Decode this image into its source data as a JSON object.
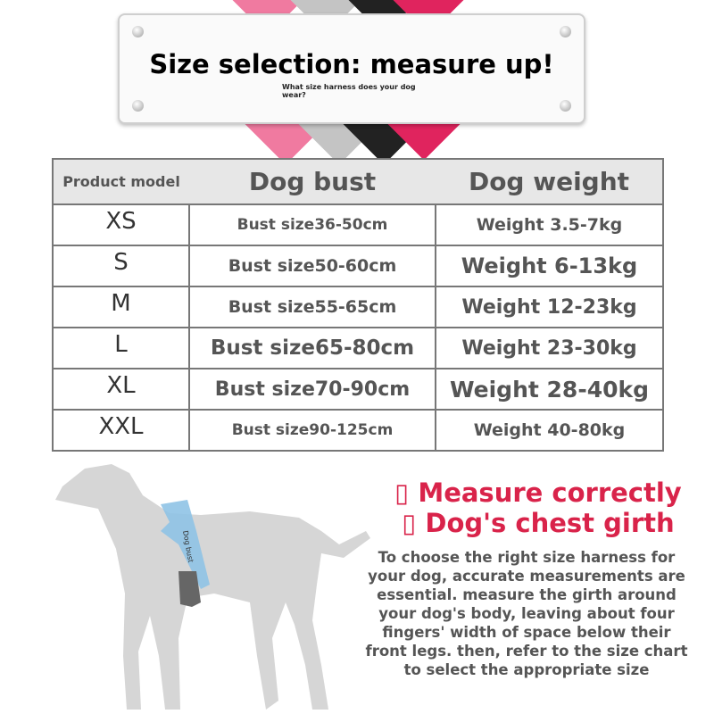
{
  "banner": {
    "title": "Size selection: measure up!",
    "subtitle": "What size harness does your dog wear?"
  },
  "ribbon_colors": [
    "#f07aa0",
    "#c0c0c0",
    "#222222",
    "#e0245e"
  ],
  "table": {
    "headers": [
      "Product model",
      "Dog bust",
      "Dog weight"
    ],
    "rows": [
      {
        "size": "XS",
        "bust": "Bust size36-50cm",
        "weight": "Weight 3.5-7kg"
      },
      {
        "size": "S",
        "bust": "Bust size50-60cm",
        "weight": "Weight 6-13kg"
      },
      {
        "size": "M",
        "bust": "Bust size55-65cm",
        "weight": "Weight 12-23kg"
      },
      {
        "size": "L",
        "bust": "Bust size65-80cm",
        "weight": "Weight 23-30kg"
      },
      {
        "size": "XL",
        "bust": "Bust size70-90cm",
        "weight": "Weight 28-40kg"
      },
      {
        "size": "XXL",
        "bust": "Bust size90-125cm",
        "weight": "Weight 40-80kg"
      }
    ]
  },
  "illustration": {
    "label": "Dog bust"
  },
  "measure": {
    "line1": "▯ Measure correctly",
    "line2": "▯ Dog's chest girth",
    "accent": "#d9234a"
  },
  "description": "To choose the right size harness for your dog, accurate measurements are essential. measure the girth around your dog's body, leaving about four fingers' width of space below their front legs. then, refer to the size chart to select the appropriate size"
}
